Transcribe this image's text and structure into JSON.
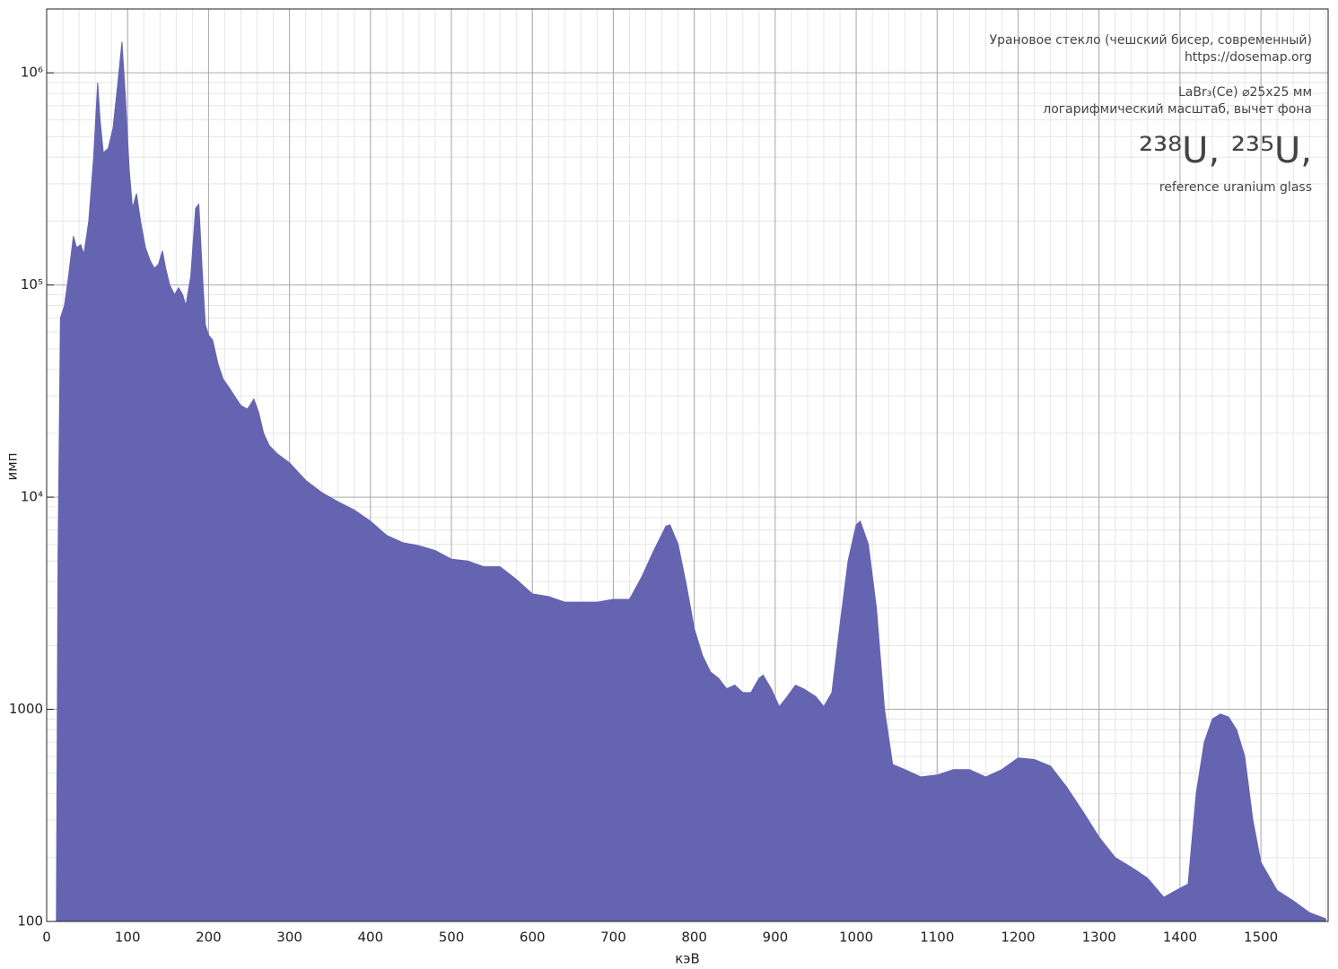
{
  "chart_data": {
    "type": "area",
    "x_label": "кэВ",
    "y_label": "имп",
    "annotations": [
      "Урановое стекло (чешский бисер, современный)",
      "https://dosemap.org",
      "LaBr₃(Ce) ⌀25x25 мм",
      "логарифмический масштаб, вычет фона",
      "²³⁸U, ²³⁵U,",
      "reference uranium glass"
    ],
    "x": [
      12,
      14,
      17,
      22,
      27,
      33,
      37,
      42,
      46,
      52,
      58,
      63,
      66,
      70,
      76,
      82,
      88,
      93,
      97,
      102,
      106,
      111,
      116,
      122,
      128,
      133,
      138,
      143,
      147,
      152,
      158,
      163,
      168,
      172,
      178,
      184,
      188,
      192,
      196,
      200,
      205,
      212,
      218,
      225,
      232,
      240,
      248,
      256,
      262,
      268,
      275,
      285,
      300,
      320,
      340,
      360,
      380,
      400,
      420,
      440,
      460,
      480,
      500,
      520,
      540,
      560,
      580,
      600,
      620,
      640,
      660,
      680,
      700,
      720,
      735,
      750,
      765,
      770,
      780,
      790,
      800,
      810,
      820,
      830,
      840,
      850,
      860,
      870,
      880,
      885,
      895,
      905,
      915,
      925,
      935,
      950,
      960,
      970,
      980,
      990,
      1000,
      1005,
      1015,
      1025,
      1035,
      1045,
      1060,
      1080,
      1100,
      1120,
      1140,
      1160,
      1180,
      1200,
      1220,
      1240,
      1260,
      1280,
      1300,
      1320,
      1340,
      1360,
      1380,
      1395,
      1410,
      1420,
      1430,
      1440,
      1450,
      1460,
      1470,
      1480,
      1490,
      1500,
      1520,
      1540,
      1560,
      1580
    ],
    "values": [
      100,
      5000,
      70000,
      80000,
      110000,
      170000,
      150000,
      155000,
      140000,
      200000,
      400000,
      900000,
      600000,
      420000,
      440000,
      550000,
      900000,
      1400000,
      800000,
      350000,
      230000,
      270000,
      200000,
      150000,
      130000,
      120000,
      125000,
      145000,
      120000,
      100000,
      90000,
      97000,
      90000,
      80000,
      110000,
      230000,
      240000,
      120000,
      65000,
      58000,
      55000,
      42000,
      36000,
      33000,
      30000,
      27000,
      26000,
      29000,
      25000,
      20000,
      17500,
      16000,
      14500,
      12000,
      10500,
      9500,
      8700,
      7700,
      6600,
      6100,
      5900,
      5600,
      5100,
      5000,
      4700,
      4700,
      4100,
      3500,
      3400,
      3200,
      3200,
      3200,
      3300,
      3300,
      4200,
      5600,
      7300,
      7400,
      6000,
      3900,
      2400,
      1800,
      1500,
      1400,
      1250,
      1300,
      1200,
      1200,
      1400,
      1450,
      1250,
      1030,
      1150,
      1300,
      1250,
      1150,
      1030,
      1200,
      2500,
      5000,
      7400,
      7700,
      6000,
      3000,
      1000,
      550,
      520,
      480,
      490,
      520,
      520,
      480,
      520,
      590,
      580,
      540,
      430,
      330,
      250,
      200,
      180,
      160,
      130,
      140,
      150,
      400,
      700,
      900,
      950,
      920,
      800,
      600,
      300,
      190,
      140,
      125,
      110,
      103
    ],
    "color": "#6464b0",
    "xlim": [
      0,
      1583
    ],
    "xticks": [
      0,
      100,
      200,
      300,
      400,
      500,
      600,
      700,
      800,
      900,
      1000,
      1100,
      1200,
      1300,
      1400,
      1500
    ],
    "ylim": [
      100,
      2000000
    ],
    "log_y": true,
    "yticks": [
      100,
      1000,
      {
        "value": 10000,
        "label": "10⁴"
      },
      {
        "value": 100000,
        "label": "10⁵"
      },
      {
        "value": 1000000,
        "label": "10⁶"
      }
    ],
    "grid": true
  }
}
